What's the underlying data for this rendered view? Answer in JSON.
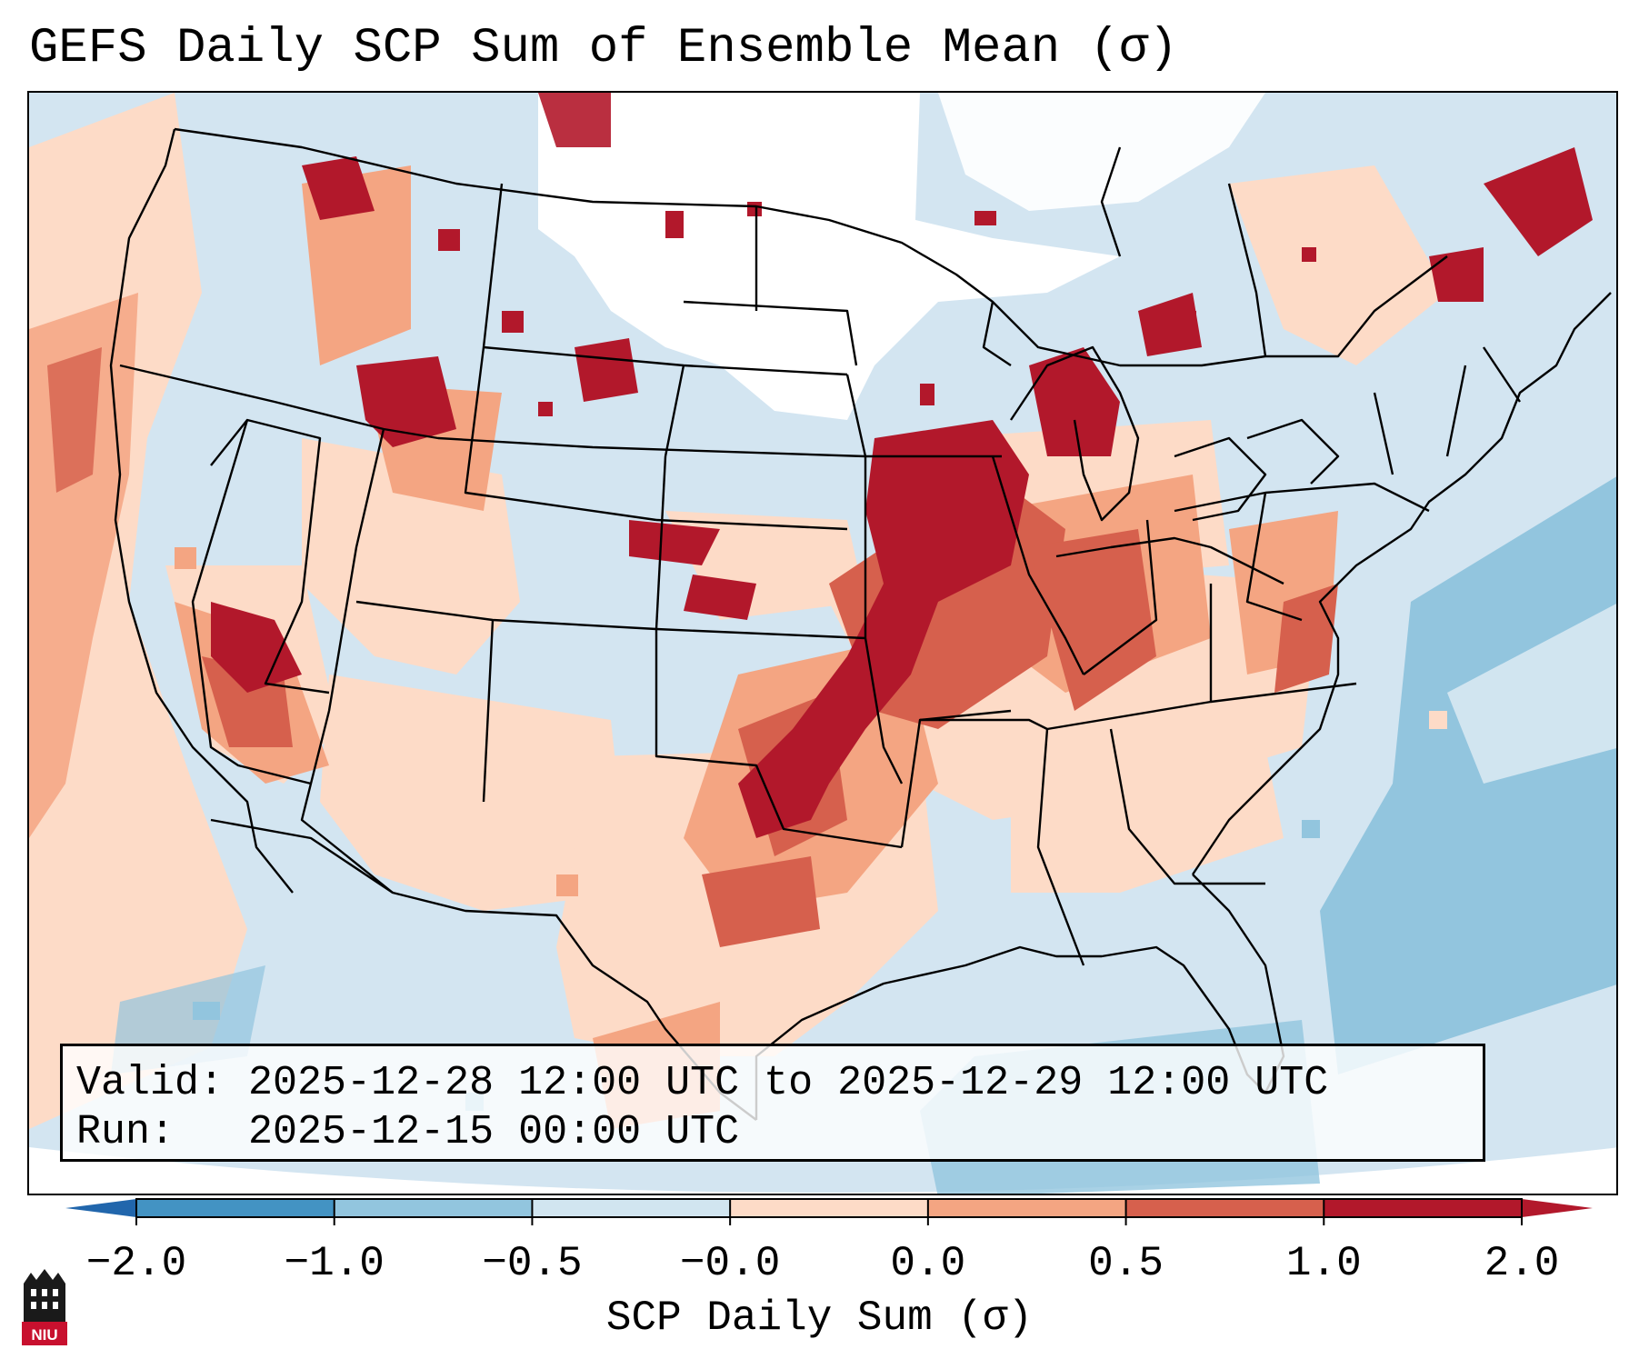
{
  "title": "GEFS Daily SCP Sum of Ensemble Mean (σ)",
  "info": {
    "valid_label": "Valid:",
    "valid_value": "2025-12-28 12:00 UTC to 2025-12-29 12:00 UTC",
    "run_label": "Run:",
    "run_value": "2025-12-15 00:00 UTC"
  },
  "colorbar": {
    "label": "SCP Daily Sum (σ)",
    "ticks": [
      "−2.0",
      "−1.0",
      "−0.5",
      "−0.0",
      "0.0",
      "0.5",
      "1.0",
      "2.0"
    ],
    "colors": [
      "#2166ac",
      "#4393c3",
      "#92c5de",
      "#d1e5f0",
      "#fddbc7",
      "#f4a582",
      "#d6604d",
      "#b2182b"
    ],
    "extend_low_color": "#2166ac",
    "extend_high_color": "#b2182b"
  },
  "map": {
    "region": "Contiguous United States",
    "background_color": "#d1e5f0",
    "no_data_color": "#ffffff"
  },
  "logo": {
    "text": "NIU",
    "icon": "niu-university-logo-icon",
    "color": "#c8102e"
  }
}
